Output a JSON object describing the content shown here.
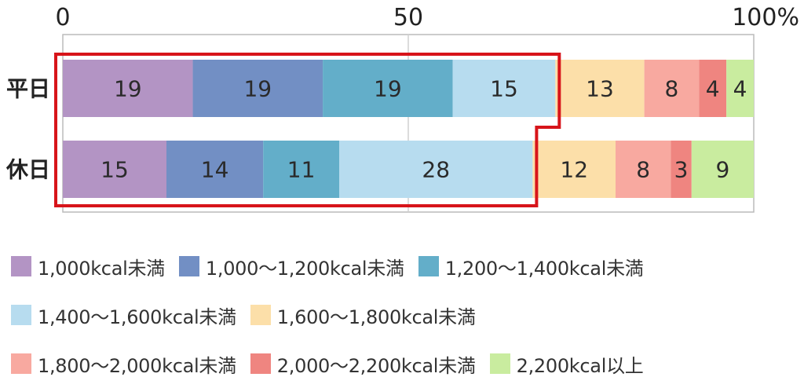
{
  "chart_data": {
    "type": "bar",
    "orientation": "horizontal",
    "stacked": true,
    "categories": [
      "平日",
      "休日"
    ],
    "series": [
      {
        "name": "1,000kcal未満",
        "values": [
          19,
          15
        ],
        "color": "#b394c4"
      },
      {
        "name": "1,000〜1,200kcal未満",
        "values": [
          19,
          14
        ],
        "color": "#728fc4"
      },
      {
        "name": "1,200〜1,400kcal未満",
        "values": [
          19,
          11
        ],
        "color": "#63aec9"
      },
      {
        "name": "1,400〜1,600kcal未満",
        "values": [
          15,
          28
        ],
        "color": "#b7dcef"
      },
      {
        "name": "1,600〜1,800kcal未満",
        "values": [
          13,
          12
        ],
        "color": "#fcdfa9"
      },
      {
        "name": "1,800〜2,000kcal未満",
        "values": [
          8,
          8
        ],
        "color": "#f8a9a0"
      },
      {
        "name": "2,000〜2,200kcal未満",
        "values": [
          4,
          3
        ],
        "color": "#ef8580"
      },
      {
        "name": "2,200kcal以上",
        "values": [
          4,
          9
        ],
        "color": "#c9ec9f"
      }
    ],
    "xlim": [
      0,
      100
    ],
    "xticks": [
      "0",
      "50",
      "100%"
    ],
    "highlight": {
      "series_count": 4,
      "color": "#d7141a"
    },
    "legend": {
      "position": "bottom"
    }
  }
}
